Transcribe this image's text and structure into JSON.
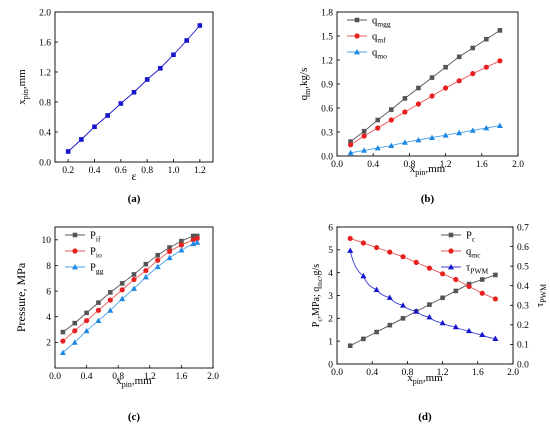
{
  "chart_data": [
    {
      "panel": "a",
      "type": "line",
      "caption": "(a)",
      "xlabel": "ε",
      "ylabel_main": "x",
      "ylabel_sub": "pin",
      "ylabel_rest": ",mm",
      "xlim": [
        0.1,
        1.3
      ],
      "ylim": [
        0,
        2.0
      ],
      "xticks": [
        "0.2",
        "0.4",
        "0.6",
        "0.8",
        "1.0",
        "1.2"
      ],
      "yticks": [
        "0.0",
        "0.4",
        "0.8",
        "1.2",
        "1.6",
        "2.0"
      ],
      "series": [
        {
          "color": "#1515cc",
          "marker": "square",
          "markerColor": "#1515cc",
          "x": [
            0.2,
            0.3,
            0.4,
            0.5,
            0.6,
            0.7,
            0.8,
            0.9,
            1.0,
            1.1,
            1.2
          ],
          "y": [
            0.14,
            0.3,
            0.47,
            0.62,
            0.78,
            0.93,
            1.1,
            1.25,
            1.43,
            1.62,
            1.82
          ]
        }
      ]
    },
    {
      "panel": "b",
      "type": "line",
      "caption": "(b)",
      "xlabel_main": "x",
      "xlabel_sub": "pin",
      "xlabel_rest": ",mm",
      "ylabel_main": "q",
      "ylabel_sub": "m",
      "ylabel_rest": ",kg/s",
      "xlim": [
        0.0,
        2.0
      ],
      "ylim": [
        0.0,
        1.8
      ],
      "xticks": [
        "0.0",
        "0.4",
        "0.8",
        "1.2",
        "1.6",
        "2.0"
      ],
      "yticks": [
        "0.0",
        "0.3",
        "0.6",
        "0.9",
        "1.2",
        "1.5",
        "1.8"
      ],
      "legend_position": "top-left",
      "series": [
        {
          "name_main": "q",
          "name_sub": "mgg",
          "color": "#555555",
          "marker": "square",
          "markerColor": "#555555",
          "x": [
            0.15,
            0.3,
            0.45,
            0.6,
            0.75,
            0.9,
            1.05,
            1.2,
            1.35,
            1.5,
            1.65,
            1.8
          ],
          "y": [
            0.18,
            0.31,
            0.45,
            0.58,
            0.72,
            0.85,
            0.98,
            1.11,
            1.24,
            1.35,
            1.46,
            1.57
          ]
        },
        {
          "name_main": "q",
          "name_sub": "mf",
          "color": "#e85555",
          "marker": "circle",
          "markerColor": "#e82020",
          "x": [
            0.15,
            0.3,
            0.45,
            0.6,
            0.75,
            0.9,
            1.05,
            1.2,
            1.35,
            1.5,
            1.65,
            1.8
          ],
          "y": [
            0.14,
            0.25,
            0.35,
            0.45,
            0.55,
            0.65,
            0.75,
            0.85,
            0.94,
            1.03,
            1.11,
            1.19
          ]
        },
        {
          "name_main": "q",
          "name_sub": "mo",
          "color": "#4da3e8",
          "marker": "triangle",
          "markerColor": "#1e88e5",
          "x": [
            0.15,
            0.3,
            0.45,
            0.6,
            0.75,
            0.9,
            1.05,
            1.2,
            1.35,
            1.5,
            1.65,
            1.8
          ],
          "y": [
            0.04,
            0.07,
            0.1,
            0.13,
            0.17,
            0.2,
            0.23,
            0.26,
            0.29,
            0.32,
            0.35,
            0.38
          ]
        }
      ]
    },
    {
      "panel": "c",
      "type": "line",
      "caption": "(c)",
      "xlabel_main": "x",
      "xlabel_sub": "pin",
      "xlabel_rest": ",mm",
      "ylabel": "Pressure, MPa",
      "xlim": [
        0.0,
        2.0
      ],
      "ylim": [
        0,
        11
      ],
      "xticks": [
        "0.0",
        "0.4",
        "0.8",
        "1.2",
        "1.6",
        "2.0"
      ],
      "yticks": [
        "2",
        "4",
        "6",
        "8",
        "10"
      ],
      "legend_position": "top-left",
      "series": [
        {
          "name_main": "P",
          "name_sub": "if",
          "color": "#555555",
          "marker": "square",
          "markerColor": "#555555",
          "x": [
            0.1,
            0.25,
            0.4,
            0.55,
            0.7,
            0.85,
            1.0,
            1.15,
            1.3,
            1.45,
            1.6,
            1.75,
            1.8
          ],
          "y": [
            2.8,
            3.5,
            4.3,
            5.1,
            5.9,
            6.6,
            7.3,
            8.1,
            8.8,
            9.4,
            9.9,
            10.3,
            10.3
          ]
        },
        {
          "name_main": "P",
          "name_sub": "io",
          "color": "#e85555",
          "marker": "circle",
          "markerColor": "#e82020",
          "x": [
            0.1,
            0.25,
            0.4,
            0.55,
            0.7,
            0.85,
            1.0,
            1.15,
            1.3,
            1.45,
            1.6,
            1.75,
            1.8
          ],
          "y": [
            2.1,
            2.9,
            3.7,
            4.5,
            5.3,
            6.1,
            6.9,
            7.6,
            8.4,
            9.1,
            9.6,
            10.0,
            10.1
          ]
        },
        {
          "name_main": "P",
          "name_sub": "gg",
          "color": "#4da3e8",
          "marker": "triangle",
          "markerColor": "#1e88e5",
          "x": [
            0.1,
            0.25,
            0.4,
            0.55,
            0.7,
            0.85,
            1.0,
            1.15,
            1.3,
            1.45,
            1.6,
            1.75,
            1.8
          ],
          "y": [
            1.2,
            2.0,
            2.9,
            3.7,
            4.5,
            5.4,
            6.2,
            7.1,
            7.9,
            8.6,
            9.2,
            9.7,
            9.8
          ]
        }
      ]
    },
    {
      "panel": "d",
      "type": "line",
      "caption": "(d)",
      "xlabel_main": "x",
      "xlabel_sub": "pin",
      "xlabel_rest": ",mm",
      "ylabel_left_a": "P",
      "ylabel_left_a_sub": "c",
      "ylabel_left_b": ",MPa; q",
      "ylabel_left_b_sub": "mc",
      "ylabel_left_c": ",g/s",
      "ylabel_right_main": "τ",
      "ylabel_right_sub": "PWM",
      "xlim": [
        0.0,
        2.0
      ],
      "ylim": [
        0,
        6
      ],
      "ylim_right": [
        0,
        0.7
      ],
      "xticks": [
        "0.0",
        "0.4",
        "0.8",
        "1.2",
        "1.6",
        "2.0"
      ],
      "yticks": [
        "0",
        "1",
        "2",
        "3",
        "4",
        "5",
        "6"
      ],
      "yticks_right": [
        "0.0",
        "0.1",
        "0.2",
        "0.3",
        "0.4",
        "0.5",
        "0.6",
        "0.7"
      ],
      "legend_position": "top-right",
      "series": [
        {
          "name_main": "P",
          "name_sub": "c",
          "axis": "left",
          "color": "#555555",
          "marker": "square",
          "markerColor": "#555555",
          "x": [
            0.15,
            0.3,
            0.45,
            0.6,
            0.75,
            0.9,
            1.05,
            1.2,
            1.35,
            1.5,
            1.65,
            1.8
          ],
          "y": [
            0.8,
            1.1,
            1.4,
            1.7,
            2.0,
            2.3,
            2.6,
            2.9,
            3.2,
            3.5,
            3.7,
            3.9
          ]
        },
        {
          "name_main": "q",
          "name_sub": "mc",
          "axis": "left",
          "color": "#e85555",
          "marker": "circle",
          "markerColor": "#e82020",
          "x": [
            0.15,
            0.3,
            0.45,
            0.6,
            0.75,
            0.9,
            1.05,
            1.2,
            1.35,
            1.5,
            1.65,
            1.8
          ],
          "y": [
            5.5,
            5.3,
            5.1,
            4.9,
            4.7,
            4.45,
            4.2,
            3.95,
            3.7,
            3.4,
            3.1,
            2.85
          ]
        },
        {
          "name_main": "τ",
          "name_sub": "PWM",
          "axis": "right",
          "color": "#3b3bd9",
          "marker": "triangle",
          "markerColor": "#1515cc",
          "x": [
            0.15,
            0.3,
            0.45,
            0.6,
            0.75,
            0.9,
            1.05,
            1.2,
            1.35,
            1.5,
            1.65,
            1.8
          ],
          "y": [
            0.58,
            0.45,
            0.38,
            0.34,
            0.3,
            0.27,
            0.24,
            0.21,
            0.19,
            0.17,
            0.15,
            0.13
          ]
        }
      ]
    }
  ]
}
